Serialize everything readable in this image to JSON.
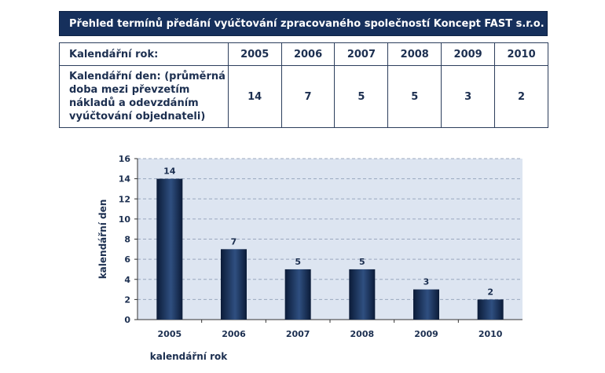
{
  "header": {
    "title": "Přehled termínů předání vyúčtování zpracovaného společností Koncept FAST s.r.o."
  },
  "table": {
    "year_label": "Kalendářní rok:",
    "day_label": "Kalendářní den: (průměrná doba mezi převzetím nákladů a odevzdáním vyúčtování objednateli)",
    "years": [
      "2005",
      "2006",
      "2007",
      "2008",
      "2009",
      "2010"
    ],
    "days": [
      "14",
      "7",
      "5",
      "5",
      "3",
      "2"
    ]
  },
  "chart_data": {
    "type": "bar",
    "categories": [
      "2005",
      "2006",
      "2007",
      "2008",
      "2009",
      "2010"
    ],
    "values": [
      14,
      7,
      5,
      5,
      3,
      2
    ],
    "xlabel": "kalendářní rok",
    "ylabel": "kalendářní den",
    "ylim": [
      0,
      16
    ],
    "yticks": [
      0,
      2,
      4,
      6,
      8,
      10,
      12,
      14,
      16
    ],
    "grid": true,
    "data_labels": true,
    "colors": {
      "plot_bg": "#dde5f1",
      "bar_dark": "#0b1b38",
      "bar_light": "#2f4f80",
      "grid": "#9aa8bf",
      "text": "#1c2f50"
    }
  }
}
